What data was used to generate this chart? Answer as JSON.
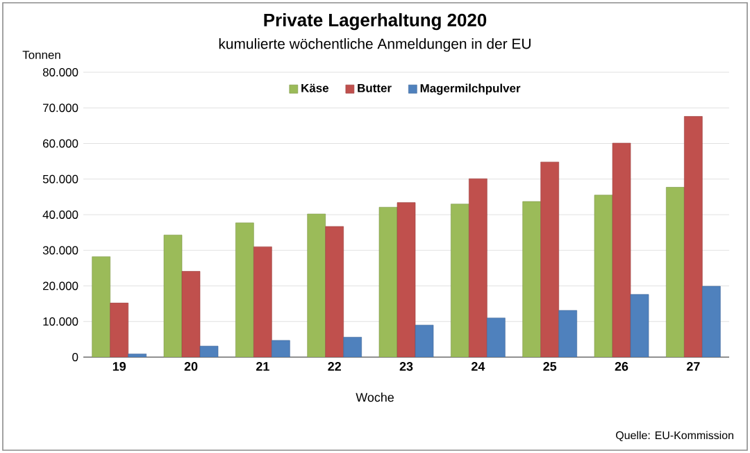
{
  "chart_data": {
    "type": "bar",
    "title": "Private Lagerhaltung 2020",
    "subtitle": "kumulierte wöchentliche Anmeldungen in der EU",
    "ylabel": "Tonnen",
    "xlabel": "Woche",
    "annotations": [
      "Quelle: EU-Kommission"
    ],
    "categories": [
      "19",
      "20",
      "21",
      "22",
      "23",
      "24",
      "25",
      "26",
      "27"
    ],
    "series": [
      {
        "name": "Käse",
        "color": "#9bbb59",
        "values": [
          28200,
          34300,
          37700,
          40200,
          42100,
          43000,
          43700,
          45500,
          47700
        ]
      },
      {
        "name": "Butter",
        "color": "#c0504d",
        "values": [
          15200,
          24100,
          31000,
          36700,
          43400,
          50100,
          54800,
          60100,
          67600
        ]
      },
      {
        "name": "Magermilchpulver",
        "color": "#4f81bd",
        "values": [
          900,
          3100,
          4700,
          5600,
          9000,
          11000,
          13100,
          17600,
          19900
        ]
      }
    ],
    "ylim": [
      0,
      80000
    ],
    "yticks": [
      {
        "value": 0,
        "label": "0"
      },
      {
        "value": 10000,
        "label": "10.000"
      },
      {
        "value": 20000,
        "label": "20.000"
      },
      {
        "value": 30000,
        "label": "30.000"
      },
      {
        "value": 40000,
        "label": "40.000"
      },
      {
        "value": 50000,
        "label": "50.000"
      },
      {
        "value": 60000,
        "label": "60.000"
      },
      {
        "value": 70000,
        "label": "70.000"
      },
      {
        "value": 80000,
        "label": "80.000"
      }
    ],
    "grid": true,
    "legend": "top"
  }
}
